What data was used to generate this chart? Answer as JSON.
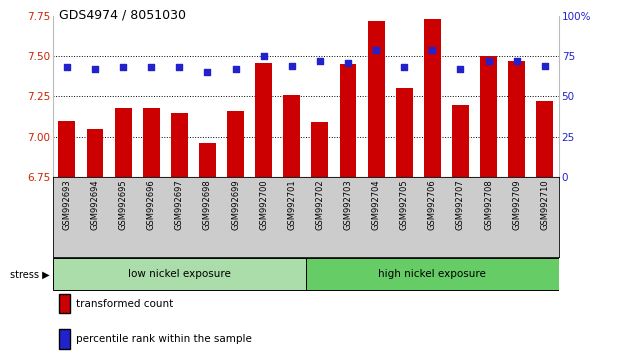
{
  "title": "GDS4974 / 8051030",
  "samples": [
    "GSM992693",
    "GSM992694",
    "GSM992695",
    "GSM992696",
    "GSM992697",
    "GSM992698",
    "GSM992699",
    "GSM992700",
    "GSM992701",
    "GSM992702",
    "GSM992703",
    "GSM992704",
    "GSM992705",
    "GSM992706",
    "GSM992707",
    "GSM992708",
    "GSM992709",
    "GSM992710"
  ],
  "bar_values": [
    7.1,
    7.05,
    7.18,
    7.18,
    7.15,
    6.96,
    7.16,
    7.46,
    7.26,
    7.09,
    7.45,
    7.72,
    7.3,
    7.73,
    7.2,
    7.5,
    7.47,
    7.22
  ],
  "percentile_values": [
    68,
    67,
    68,
    68,
    68,
    65,
    67,
    75,
    69,
    72,
    71,
    79,
    68,
    79,
    67,
    72,
    72,
    69
  ],
  "bar_color": "#cc0000",
  "dot_color": "#2222cc",
  "ylim_left": [
    6.75,
    7.75
  ],
  "ylim_right": [
    0,
    100
  ],
  "yticks_left": [
    6.75,
    7.0,
    7.25,
    7.5,
    7.75
  ],
  "yticks_right": [
    0,
    25,
    50,
    75,
    100
  ],
  "ytick_labels_right": [
    "0",
    "25",
    "50",
    "75",
    "100%"
  ],
  "group1_label": "low nickel exposure",
  "group2_label": "high nickel exposure",
  "group1_count": 9,
  "stress_label": "stress",
  "legend1_label": "transformed count",
  "legend2_label": "percentile rank within the sample",
  "group1_color": "#aaddaa",
  "group2_color": "#66cc66",
  "bar_width": 0.6,
  "background_color": "#ffffff",
  "tick_label_color_left": "#cc2200",
  "tick_label_color_right": "#2222cc",
  "tick_area_color": "#cccccc"
}
